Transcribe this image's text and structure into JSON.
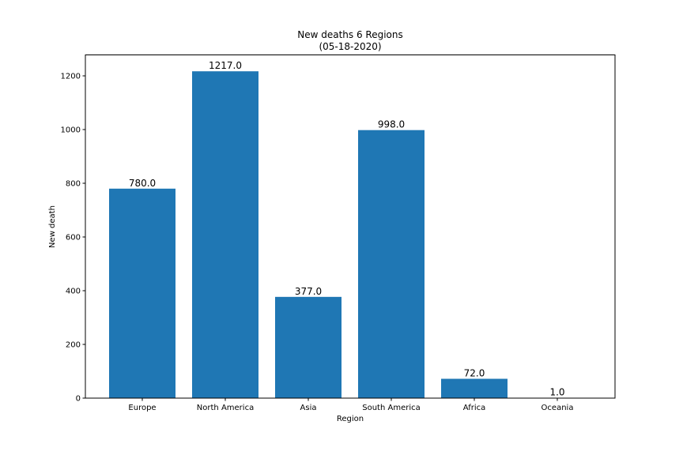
{
  "chart_data": {
    "type": "bar",
    "title": "New deaths 6 Regions",
    "subtitle": "(05-18-2020)",
    "xlabel": "Region",
    "ylabel": "New death",
    "categories": [
      "Europe",
      "North America",
      "Asia",
      "South America",
      "Africa",
      "Oceania"
    ],
    "values": [
      780.0,
      1217.0,
      377.0,
      998.0,
      72.0,
      1.0
    ],
    "data_labels": [
      "780.0",
      "1217.0",
      "377.0",
      "998.0",
      "72.0",
      "1.0"
    ],
    "ylim": [
      0,
      1278
    ],
    "yticks": [
      0,
      200,
      400,
      600,
      800,
      1000,
      1200
    ],
    "bar_color": "#1f77b4",
    "grid": false,
    "legend": "none"
  }
}
